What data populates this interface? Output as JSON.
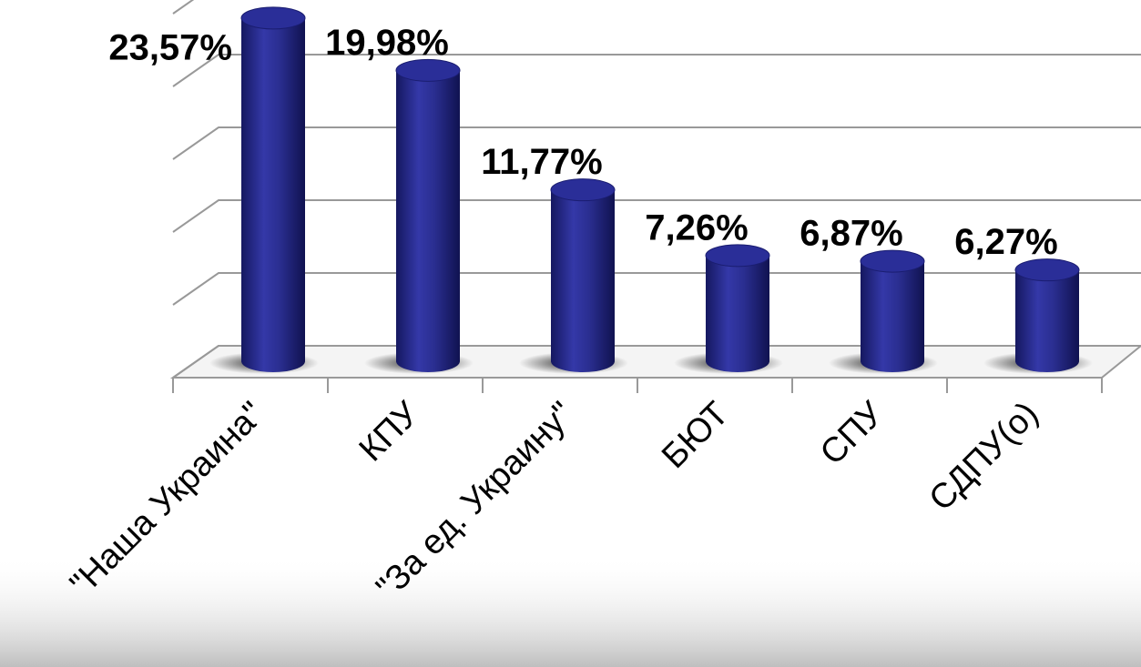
{
  "chart_data": {
    "type": "bar",
    "categories": [
      "\"Наша Украина\"",
      "КПУ",
      "\"За ед. Украину\"",
      "БЮТ",
      "СПУ",
      "СДПУ(о)"
    ],
    "values": [
      23.57,
      19.98,
      11.77,
      7.26,
      6.87,
      6.27
    ],
    "value_labels": [
      "23,57%",
      "19,98%",
      "11,77%",
      "7,26%",
      "6,87%",
      "6,27%"
    ],
    "color": "#2b2f8f",
    "ylim": [
      0,
      25
    ],
    "yticks": [
      0,
      5,
      10,
      15,
      20,
      25
    ],
    "grid": true
  }
}
